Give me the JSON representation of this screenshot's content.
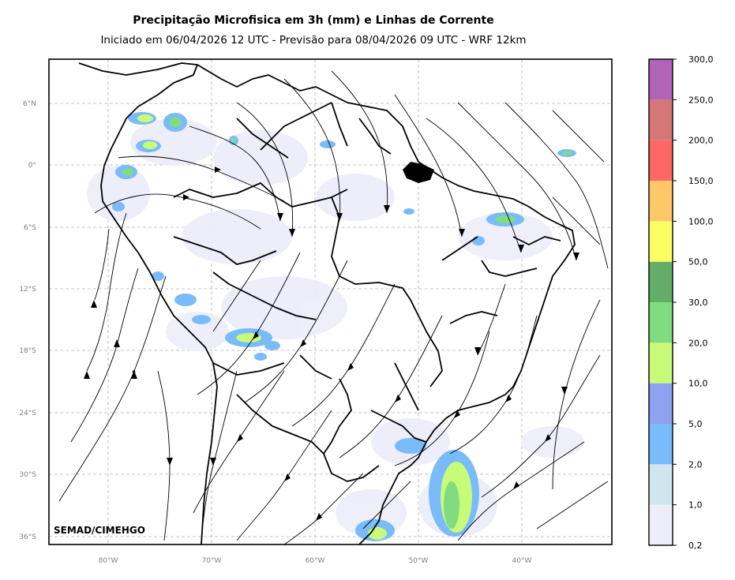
{
  "title": "Precipitação Microfisica em 3h (mm) e Linhas de Corrente",
  "subtitle": "Iniciado em 06/04/2026 12 UTC - Previsão para 08/04/2026 09 UTC - WRF 12km",
  "watermark": "SEMAD/CIMEHGO",
  "lat_ticks": [
    "6°N",
    "0°",
    "6°S",
    "12°S",
    "18°S",
    "24°S",
    "30°S",
    "36°S"
  ],
  "lon_ticks": [
    "80°W",
    "70°W",
    "60°W",
    "50°W",
    "40°W"
  ],
  "colorbar": {
    "labels": [
      "0,2",
      "1,0",
      "2,0",
      "5,0",
      "10,0",
      "20,0",
      "30,0",
      "50,0",
      "100,0",
      "150,0",
      "200,0",
      "250,0",
      "300,0"
    ],
    "colors": [
      "#eeeefa",
      "#cfe6ee",
      "#79bbfb",
      "#8ea2ef",
      "#c8fb7a",
      "#81dc80",
      "#63ad66",
      "#fefe64",
      "#fec768",
      "#fe6766",
      "#d47776",
      "#b163b8"
    ]
  },
  "colors": {
    "frame": "#000000",
    "grid": "#b3b3b3",
    "tick_text": "#808080",
    "accent_green": "#81dc80",
    "accent_blue": "#79bbfb"
  }
}
